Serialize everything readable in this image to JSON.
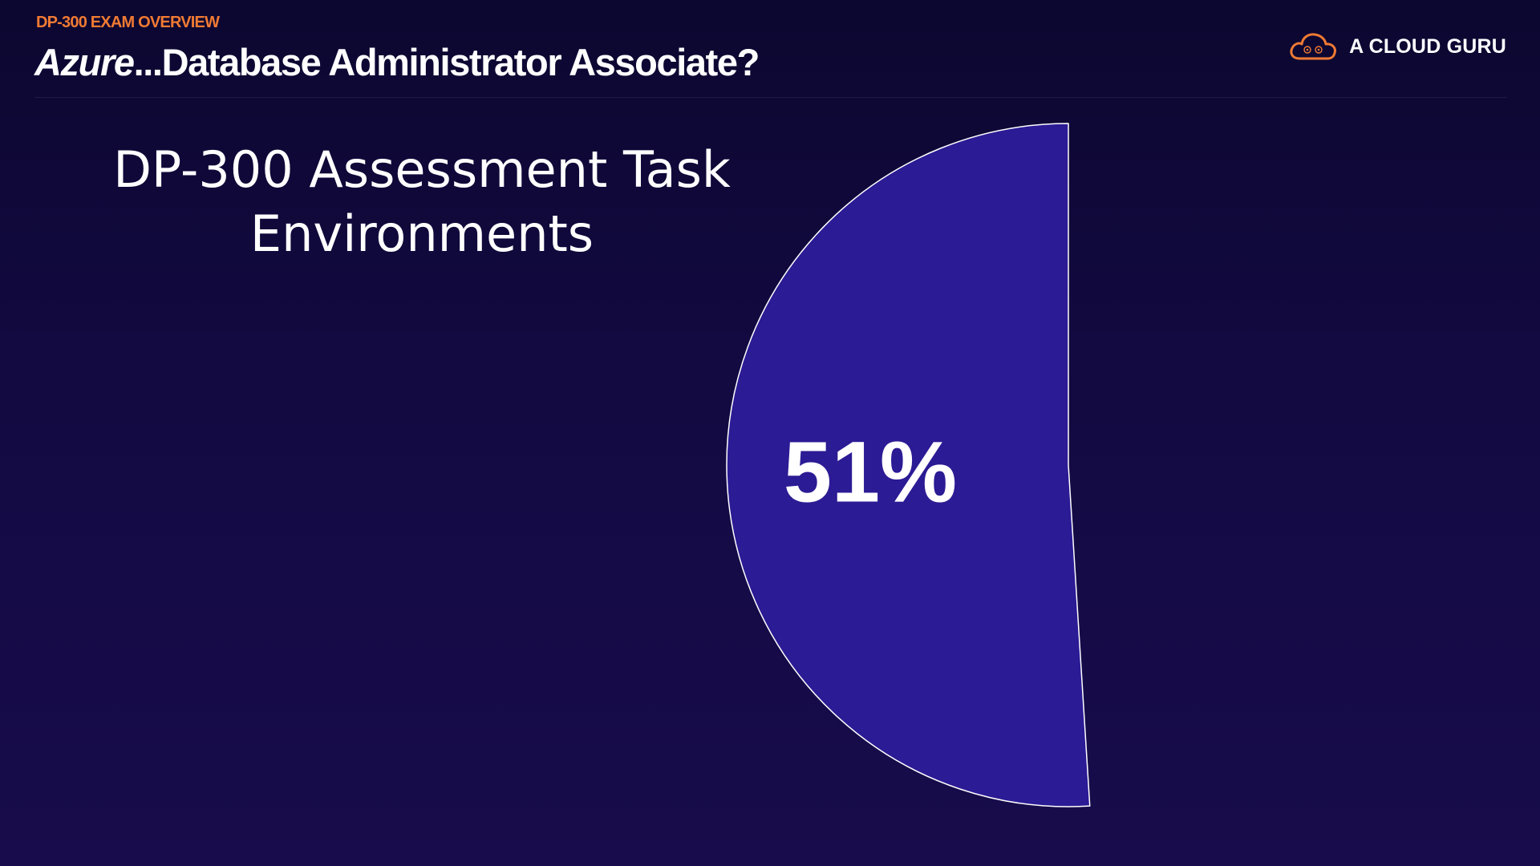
{
  "header": {
    "eyebrow": "DP-300 EXAM OVERVIEW",
    "title_italic": "Azure",
    "title_rest": "...Database Administrator Associate?"
  },
  "brand": {
    "name": "A CLOUD GURU",
    "icon": "cloud-logo-icon",
    "accent_color": "#f07a33"
  },
  "chart_data": {
    "type": "pie",
    "title_lines": [
      "DP-300 Assessment Task",
      "Environments"
    ],
    "slices": [
      {
        "label": "51%",
        "value": 51,
        "color": "#2b1b94",
        "stroke": "#ffffff"
      }
    ],
    "start_angle_deg": 0,
    "direction": "counterclockwise",
    "legend": "none"
  },
  "colors": {
    "background_top": "#0c0730",
    "background_bottom": "#180c4c",
    "text": "#ffffff"
  }
}
